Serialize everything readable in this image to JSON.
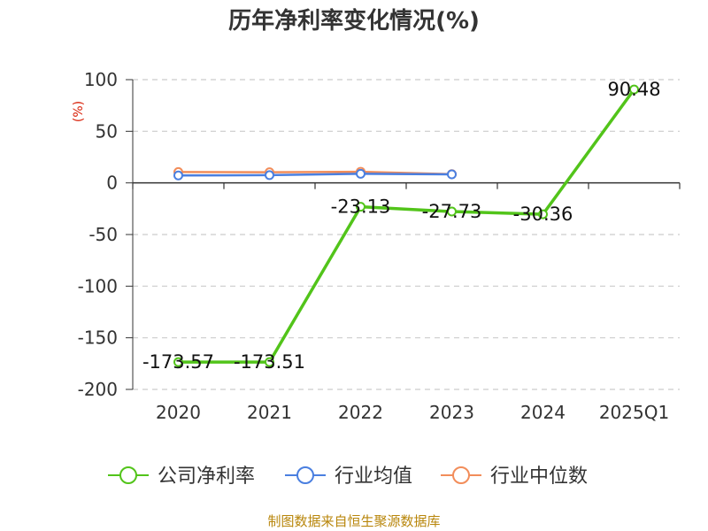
{
  "chart_data": {
    "type": "line",
    "title": "历年净利率变化情况(%)",
    "ylabel": "(%)",
    "categories": [
      "2020",
      "2021",
      "2022",
      "2023",
      "2024",
      "2025Q1"
    ],
    "ylim": [
      -200,
      100
    ],
    "yticks": [
      100,
      50,
      0,
      -50,
      -100,
      -150,
      -200
    ],
    "grid": true,
    "legend_position": "bottom",
    "series": [
      {
        "name": "公司净利率",
        "color": "#52c41a",
        "values": [
          -173.57,
          -173.51,
          -23.13,
          -27.73,
          -30.36,
          90.48
        ]
      },
      {
        "name": "行业均值",
        "color": "#4a7fe0",
        "values": [
          7.2,
          7.5,
          8.8,
          8.3,
          null,
          null
        ]
      },
      {
        "name": "行业中位数",
        "color": "#f28d5a",
        "values": [
          10.5,
          10.3,
          10.8,
          8.5,
          null,
          null
        ]
      }
    ],
    "data_labels": [
      "-173.57",
      "-173.51",
      "-23.13",
      "-27.73",
      "-30.36",
      "90.48"
    ]
  },
  "footer": {
    "source": "制图数据来自恒生聚源数据库"
  }
}
